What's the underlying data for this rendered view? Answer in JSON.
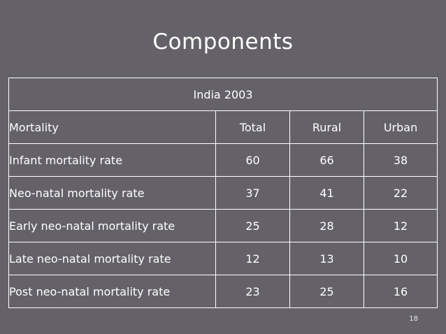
{
  "slide": {
    "title": "Components",
    "page_number": "18"
  },
  "table": {
    "caption": "India 2003",
    "headers": [
      "Mortality",
      "Total",
      "Rural",
      "Urban"
    ],
    "rows": [
      [
        "Infant mortality rate",
        "60",
        "66",
        "38"
      ],
      [
        "Neo-natal mortality rate",
        "37",
        "41",
        "22"
      ],
      [
        "Early neo-natal mortality rate",
        "25",
        "28",
        "12"
      ],
      [
        "Late neo-natal mortality rate",
        "12",
        "13",
        "10"
      ],
      [
        "Post neo-natal mortality rate",
        "23",
        "25",
        "16"
      ]
    ]
  }
}
